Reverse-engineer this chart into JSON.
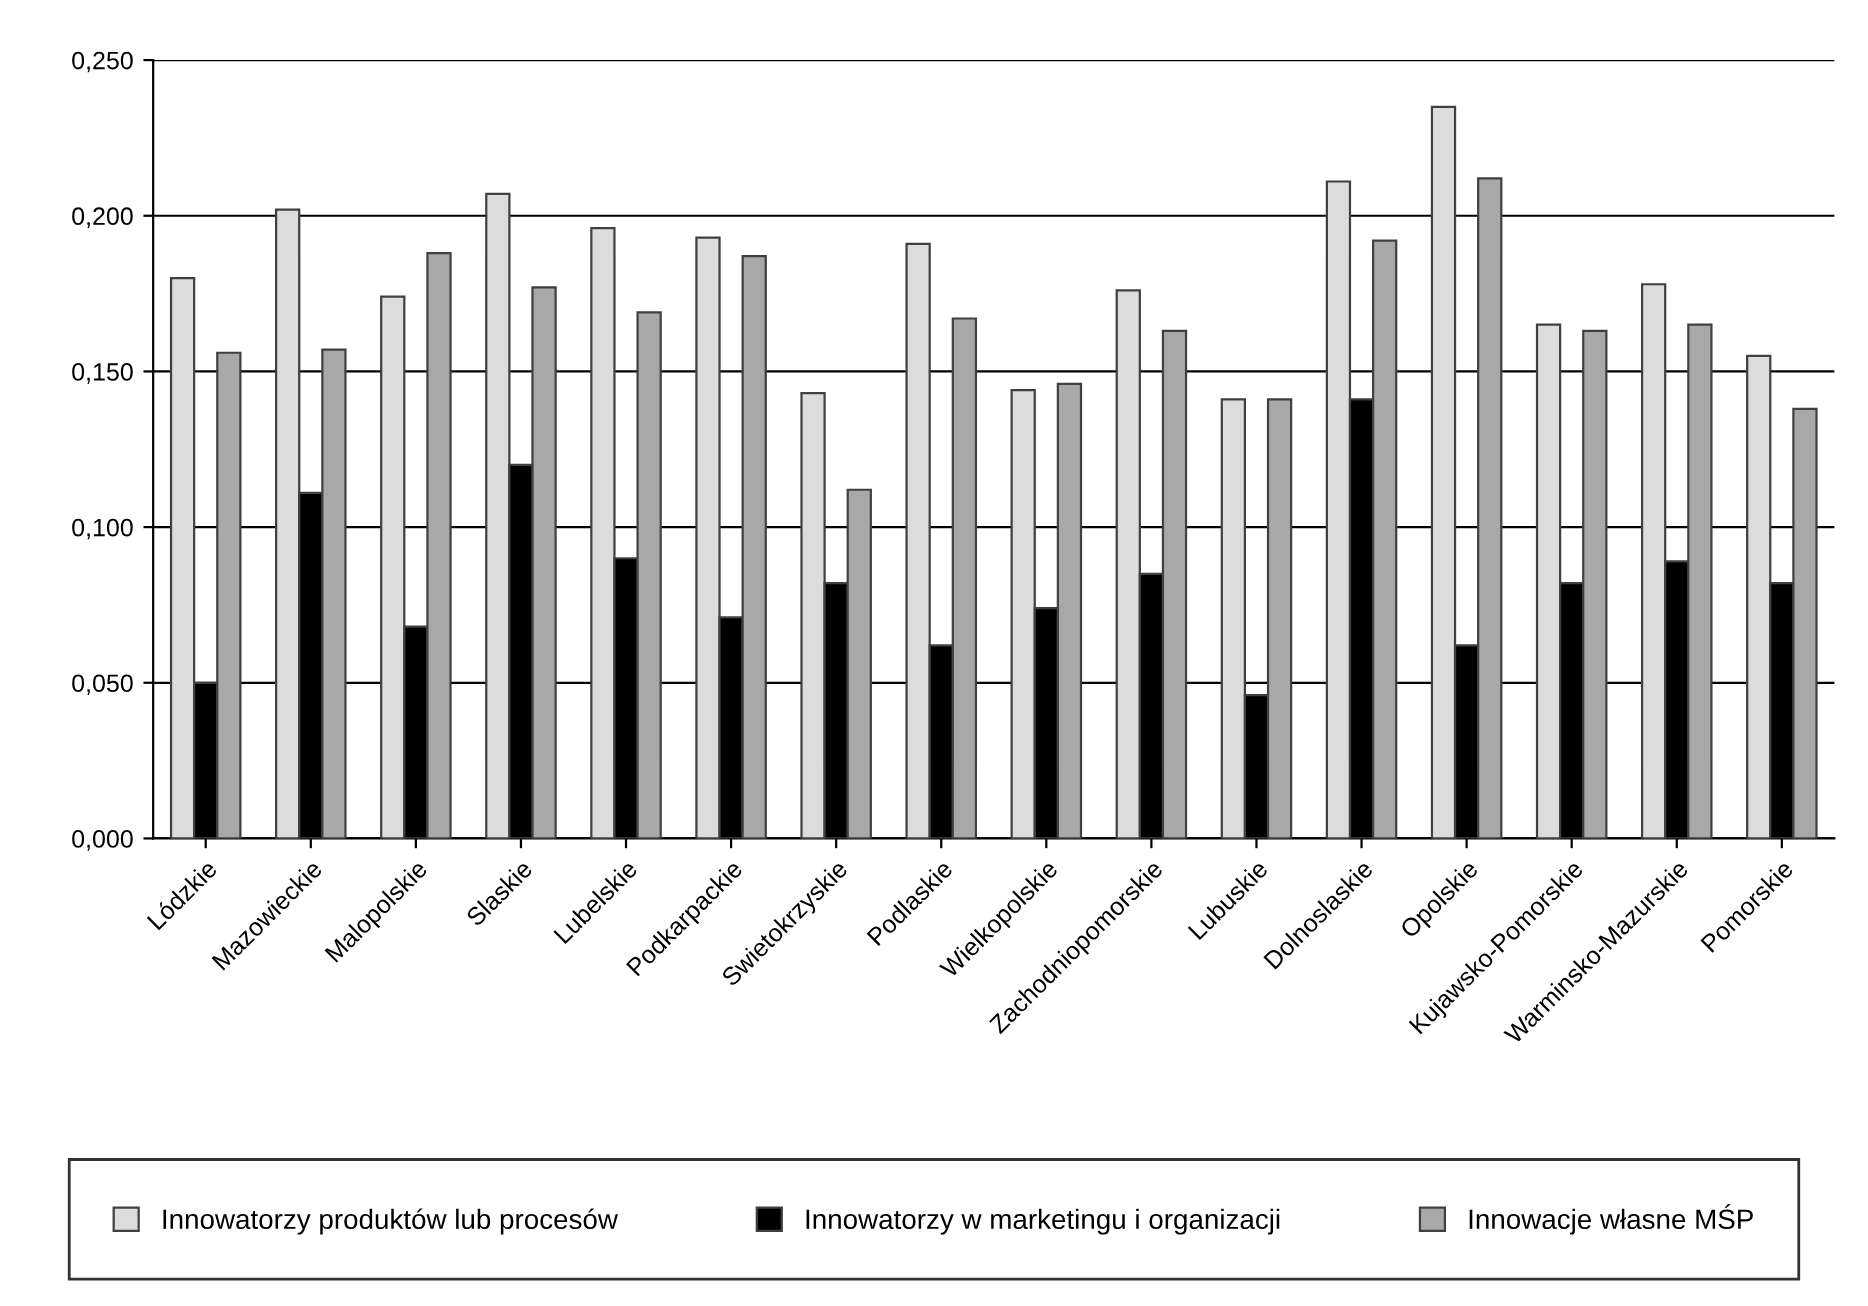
{
  "chart_data": {
    "type": "bar",
    "categories": [
      "Lódzkie",
      "Mazowieckie",
      "Malopolskie",
      "Slaskie",
      "Lubelskie",
      "Podkarpackie",
      "Swietokrzyskie",
      "Podlaskie",
      "Wielkopolskie",
      "Zachodniopomorskie",
      "Lubuskie",
      "Dolnoslaskie",
      "Opolskie",
      "Kujawsko-Pomorskie",
      "Warminsko-Mazurskie",
      "Pomorskie"
    ],
    "series": [
      {
        "name": "Innowatorzy produktów lub procesów",
        "color": "#dcdcdc",
        "values": [
          0.18,
          0.202,
          0.174,
          0.207,
          0.196,
          0.193,
          0.143,
          0.191,
          0.144,
          0.176,
          0.141,
          0.211,
          0.235,
          0.165,
          0.178,
          0.155
        ]
      },
      {
        "name": "Innowatorzy w marketingu i organizacji",
        "color": "#000000",
        "values": [
          0.05,
          0.111,
          0.068,
          0.12,
          0.09,
          0.071,
          0.082,
          0.062,
          0.074,
          0.085,
          0.046,
          0.141,
          0.062,
          0.082,
          0.089,
          0.082
        ]
      },
      {
        "name": "Innowacje własne MŚP",
        "color": "#a8a8a8",
        "values": [
          0.156,
          0.157,
          0.188,
          0.177,
          0.169,
          0.187,
          0.112,
          0.167,
          0.146,
          0.163,
          0.141,
          0.192,
          0.212,
          0.163,
          0.165,
          0.138
        ]
      }
    ],
    "ylim": [
      0,
      0.25
    ],
    "yticks": [
      {
        "value": 0,
        "label": "0,000"
      },
      {
        "value": 0.05,
        "label": "0,050"
      },
      {
        "value": 0.1,
        "label": "0,100"
      },
      {
        "value": 0.15,
        "label": "0,150"
      },
      {
        "value": 0.2,
        "label": "0,200"
      },
      {
        "value": 0.25,
        "label": "0,250"
      }
    ],
    "grid": "y",
    "legend": "bottom"
  }
}
